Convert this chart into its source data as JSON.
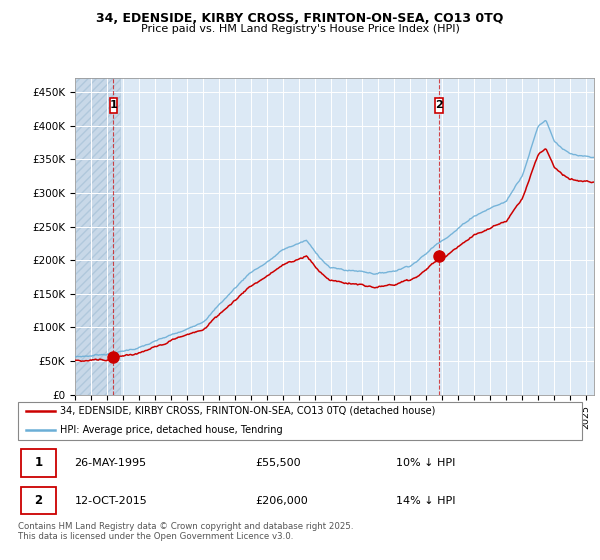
{
  "title_line1": "34, EDENSIDE, KIRBY CROSS, FRINTON-ON-SEA, CO13 0TQ",
  "title_line2": "Price paid vs. HM Land Registry's House Price Index (HPI)",
  "ylim": [
    0,
    470000
  ],
  "yticks": [
    0,
    50000,
    100000,
    150000,
    200000,
    250000,
    300000,
    350000,
    400000,
    450000
  ],
  "ytick_labels": [
    "£0",
    "£50K",
    "£100K",
    "£150K",
    "£200K",
    "£250K",
    "£300K",
    "£350K",
    "£400K",
    "£450K"
  ],
  "sale1_x": 1995.4,
  "sale1_y": 55500,
  "sale2_x": 2015.79,
  "sale2_y": 206000,
  "hpi_color": "#6baed6",
  "price_color": "#cc0000",
  "annotation_color": "#cc0000",
  "bg_color": "#dce9f5",
  "hatch_region_color": "#c8d8e8",
  "legend_entry1": "34, EDENSIDE, KIRBY CROSS, FRINTON-ON-SEA, CO13 0TQ (detached house)",
  "legend_entry2": "HPI: Average price, detached house, Tendring",
  "table_row1_num": "1",
  "table_row1_date": "26-MAY-1995",
  "table_row1_price": "£55,500",
  "table_row1_hpi": "10% ↓ HPI",
  "table_row2_num": "2",
  "table_row2_date": "12-OCT-2015",
  "table_row2_price": "£206,000",
  "table_row2_hpi": "14% ↓ HPI",
  "footnote": "Contains HM Land Registry data © Crown copyright and database right 2025.\nThis data is licensed under the Open Government Licence v3.0.",
  "xmin": 1993,
  "xmax": 2025.5
}
